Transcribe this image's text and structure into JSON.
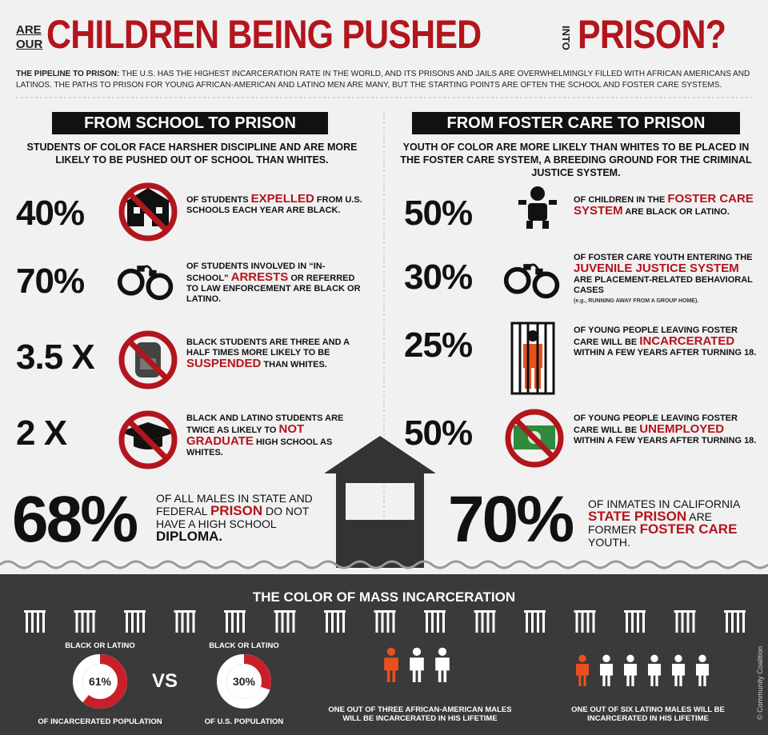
{
  "header": {
    "kicker_top": "ARE",
    "kicker_bottom": "OUR",
    "title_main": "CHILDREN BEING PUSHED",
    "title_into": "INTO",
    "title_end": "PRISON?",
    "intro_lead": "THE PIPELINE TO PRISON:",
    "intro_body": " THE U.S. HAS THE HIGHEST INCARCERATION RATE IN THE WORLD, AND ITS PRISONS AND JAILS ARE OVERWHELMINGLY FILLED WITH AFRICAN AMERICANS AND LATINOS. THE PATHS TO PRISON FOR YOUNG AFRICAN-AMERICAN AND LATINO MEN ARE MANY, BUT THE STARTING POINTS ARE OFTEN THE SCHOOL AND FOSTER CARE SYSTEMS."
  },
  "school": {
    "heading": "FROM  SCHOOL TO PRISON",
    "subhead": "STUDENTS OF COLOR FACE HARSHER DISCIPLINE AND ARE MORE LIKELY TO BE PUSHED OUT OF SCHOOL THAN WHITES.",
    "items": [
      {
        "stat": "40%",
        "segments": [
          {
            "text": "OF STUDENTS ",
            "em": false
          },
          {
            "text": "EXPELLED",
            "em": true
          },
          {
            "text": " FROM U.S. SCHOOLS EACH YEAR ARE BLACK.",
            "em": false
          }
        ]
      },
      {
        "stat": "70%",
        "segments": [
          {
            "text": "OF STUDENTS INVOLVED IN “IN-SCHOOL” ",
            "em": false
          },
          {
            "text": "ARRESTS",
            "em": true
          },
          {
            "text": " OR REFERRED TO LAW ENFORCEMENT ARE BLACK OR LATINO.",
            "em": false
          }
        ]
      },
      {
        "stat": "3.5 X",
        "segments": [
          {
            "text": "BLACK STUDENTS ARE THREE AND A HALF TIMES MORE LIKELY TO BE ",
            "em": false
          },
          {
            "text": "SUSPENDED",
            "em": true
          },
          {
            "text": " THAN WHITES.",
            "em": false
          }
        ]
      },
      {
        "stat": "2 X",
        "segments": [
          {
            "text": "BLACK AND LATINO STUDENTS ARE TWICE AS LIKELY TO ",
            "em": false
          },
          {
            "text": "NOT GRADUATE",
            "em": true
          },
          {
            "text": " HIGH SCHOOL AS WHITES.",
            "em": false
          }
        ]
      }
    ],
    "big_stat": "68%",
    "big_segments": [
      {
        "text": "OF ALL MALES IN STATE AND FEDERAL ",
        "em": false
      },
      {
        "text": "PRISON",
        "em": true
      },
      {
        "text": " DO NOT HAVE A HIGH SCHOOL ",
        "em": false
      },
      {
        "text": "DIPLOMA.",
        "em": true
      }
    ]
  },
  "foster": {
    "heading": "FROM  FOSTER CARE TO PRISON",
    "subhead": "YOUTH OF COLOR ARE MORE LIKELY THAN WHITES TO BE PLACED IN THE FOSTER CARE SYSTEM, A BREEDING GROUND FOR THE CRIMINAL JUSTICE SYSTEM.",
    "items": [
      {
        "stat": "50%",
        "segments": [
          {
            "text": "OF CHILDREN IN THE ",
            "em": false
          },
          {
            "text": "FOSTER CARE SYSTEM",
            "em": true
          },
          {
            "text": " ARE BLACK OR LATINO.",
            "em": false
          }
        ]
      },
      {
        "stat": "30%",
        "segments": [
          {
            "text": "OF FOSTER CARE YOUTH ENTERING THE ",
            "em": false
          },
          {
            "text": "JUVENILE JUSTICE SYSTEM",
            "em": true
          },
          {
            "text": " ARE PLACEMENT-RELATED BEHAVIORAL CASES",
            "em": false
          }
        ],
        "note": "(e.g., RUNNING AWAY FROM A GROUP HOME)."
      },
      {
        "stat": "25%",
        "segments": [
          {
            "text": "OF YOUNG PEOPLE LEAVING FOSTER CARE WILL BE ",
            "em": false
          },
          {
            "text": "INCARCERATED",
            "em": true
          },
          {
            "text": " WITHIN A FEW YEARS AFTER TURNING 18.",
            "em": false
          }
        ]
      },
      {
        "stat": "50%",
        "segments": [
          {
            "text": "OF YOUNG PEOPLE LEAVING FOSTER CARE WILL BE ",
            "em": false
          },
          {
            "text": "UNEMPLOYED",
            "em": true
          },
          {
            "text": " WITHIN A FEW YEARS AFTER TURNING 18.",
            "em": false
          }
        ]
      }
    ],
    "big_stat": "70%",
    "big_segments": [
      {
        "text": "OF INMATES IN CALIFORNIA ",
        "em": false
      },
      {
        "text": "STATE PRISON",
        "em": true
      },
      {
        "text": " ARE FORMER ",
        "em": false
      },
      {
        "text": "FOSTER CARE",
        "em": true
      },
      {
        "text": " YOUTH.",
        "em": false
      }
    ]
  },
  "bottom": {
    "title": "THE COLOR OF MASS INCARCERATION",
    "donuts": [
      {
        "top": "BLACK OR LATINO",
        "value": 61,
        "label": "61%",
        "bottom": "OF INCARCERATED POPULATION"
      },
      {
        "top": "BLACK OR LATINO",
        "value": 30,
        "label": "30%",
        "bottom": "OF U.S. POPULATION"
      }
    ],
    "vs": "VS",
    "people": [
      "ONE OUT OF THREE AFRICAN-AMERICAN MALES WILL BE INCARCERATED IN HIS LIFETIME",
      "ONE OUT OF SIX LATINO MALES WILL BE INCARCERATED IN HIS LIFETIME"
    ],
    "credit": "© Community Coalition"
  }
}
